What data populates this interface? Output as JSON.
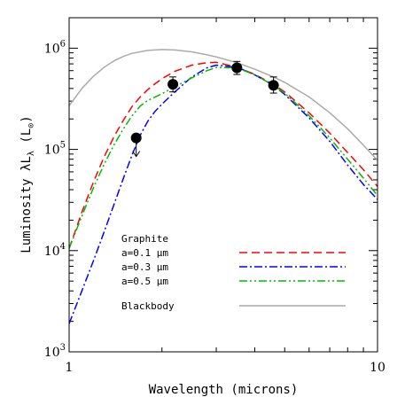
{
  "chart_data": {
    "type": "line",
    "x_scale": "log",
    "y_scale": "log",
    "xlim": [
      1,
      10
    ],
    "ylim": [
      1000,
      2000000
    ],
    "xlabel": "Wavelength (microns)",
    "ylabel": "Luminosity λL",
    "ylabel_sub": "λ",
    "ylabel_unit": "(L",
    "ylabel_unit_sub": "⊙",
    "ylabel_unit_close": ")",
    "x_ticks": [
      {
        "value": 1,
        "label": "1"
      },
      {
        "value": 10,
        "label": "10"
      }
    ],
    "y_ticks": [
      {
        "value": 1000,
        "base": "10",
        "exp": "3"
      },
      {
        "value": 10000,
        "base": "10",
        "exp": "4"
      },
      {
        "value": 100000,
        "base": "10",
        "exp": "5"
      },
      {
        "value": 1000000,
        "base": "10",
        "exp": "6"
      }
    ],
    "legend": {
      "heading": "Graphite",
      "placement": "lower-center"
    },
    "series": [
      {
        "name": "a=0.1 μm",
        "color": "#ff0000",
        "dash": "dashed",
        "x": [
          1.0,
          1.1,
          1.2,
          1.3,
          1.4,
          1.5,
          1.6,
          1.7,
          1.8,
          1.9,
          2.0,
          2.2,
          2.5,
          2.8,
          3.0,
          3.5,
          4.0,
          4.6,
          5.0,
          6.0,
          7.0,
          8.0,
          9.0,
          10.0
        ],
        "values": [
          10500,
          24000,
          48000,
          85000,
          135000,
          195000,
          265000,
          330000,
          390000,
          445000,
          500000,
          590000,
          680000,
          720000,
          725000,
          650000,
          550000,
          440000,
          370000,
          230000,
          145000,
          93000,
          63000,
          43000
        ]
      },
      {
        "name": "a=0.3 μm",
        "color": "#0000ff",
        "dash": "dashdot",
        "x": [
          1.0,
          1.1,
          1.2,
          1.3,
          1.4,
          1.5,
          1.6,
          1.7,
          1.8,
          1.9,
          2.0,
          2.2,
          2.5,
          2.8,
          3.0,
          3.5,
          4.0,
          4.6,
          5.0,
          6.0,
          7.0,
          8.0,
          9.0,
          10.0
        ],
        "values": [
          1900,
          4000,
          8000,
          15500,
          29000,
          52000,
          88000,
          138000,
          190000,
          238000,
          280000,
          370000,
          520000,
          640000,
          680000,
          650000,
          545000,
          430000,
          350000,
          205000,
          120000,
          70000,
          45000,
          32000
        ]
      },
      {
        "name": "a=0.5 μm",
        "color": "#00bb00",
        "dash": "dashdotdot",
        "x": [
          1.0,
          1.1,
          1.2,
          1.3,
          1.4,
          1.5,
          1.6,
          1.7,
          1.8,
          1.9,
          2.0,
          2.2,
          2.5,
          2.8,
          3.0,
          3.5,
          4.0,
          4.6,
          5.0,
          6.0,
          7.0,
          8.0,
          9.0,
          10.0
        ],
        "values": [
          10500,
          22000,
          42000,
          72000,
          112000,
          160000,
          215000,
          268000,
          305000,
          330000,
          355000,
          415000,
          510000,
          600000,
          645000,
          640000,
          545000,
          430000,
          360000,
          215000,
          130000,
          80000,
          52000,
          35000
        ]
      },
      {
        "name": "Blackbody",
        "color": "#aaaaaa",
        "dash": "solid",
        "x": [
          1.0,
          1.1,
          1.2,
          1.3,
          1.4,
          1.5,
          1.6,
          1.8,
          2.0,
          2.2,
          2.5,
          2.8,
          3.0,
          3.5,
          4.0,
          4.6,
          5.0,
          6.0,
          7.0,
          8.0,
          9.0,
          10.0
        ],
        "values": [
          270000,
          400000,
          530000,
          650000,
          750000,
          830000,
          890000,
          950000,
          970000,
          960000,
          920000,
          860000,
          820000,
          720000,
          620000,
          520000,
          460000,
          330000,
          230000,
          160000,
          110000,
          78000
        ]
      }
    ],
    "observations": [
      {
        "x": 1.65,
        "y": 130000,
        "upper_limit": true,
        "arrow_to": 85000
      },
      {
        "x": 2.17,
        "y": 440000,
        "err_low": 370000,
        "err_high": 520000
      },
      {
        "x": 3.5,
        "y": 640000,
        "err_low": 550000,
        "err_high": 740000
      },
      {
        "x": 4.6,
        "y": 430000,
        "err_low": 360000,
        "err_high": 520000
      }
    ]
  }
}
